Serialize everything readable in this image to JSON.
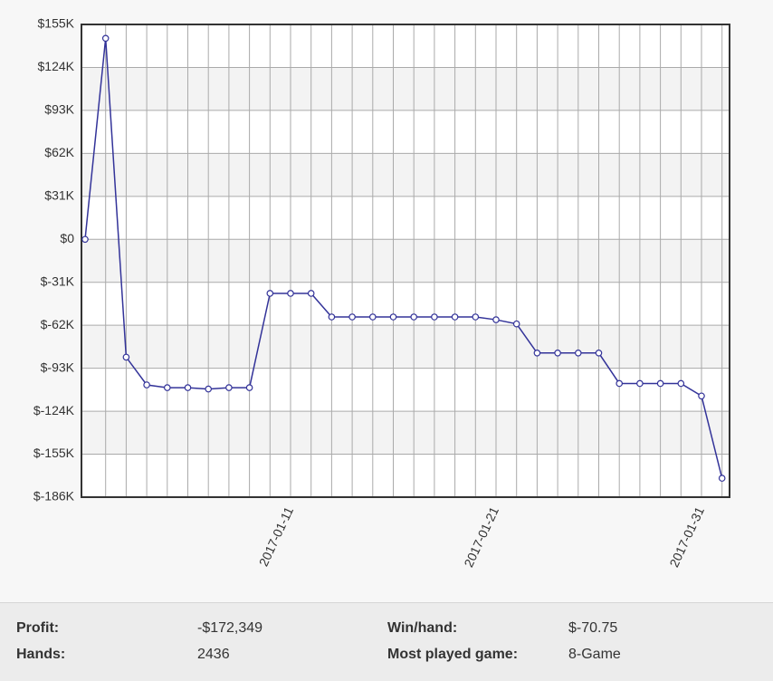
{
  "chart_data": {
    "type": "line",
    "categories": [
      null,
      null,
      null,
      null,
      null,
      null,
      null,
      null,
      null,
      null,
      "2017-01-11",
      null,
      null,
      null,
      null,
      null,
      null,
      null,
      null,
      null,
      "2017-01-21",
      null,
      null,
      null,
      null,
      null,
      null,
      null,
      null,
      null,
      "2017-01-31",
      null
    ],
    "series": [
      {
        "name": "Profit",
        "color": "#333399",
        "values": [
          0,
          145000,
          -85000,
          -105000,
          -107000,
          -107000,
          -108000,
          -107000,
          -107000,
          -39000,
          -39000,
          -39000,
          -56000,
          -56000,
          -56000,
          -56000,
          -56000,
          -56000,
          -56000,
          -56000,
          -58000,
          -61000,
          -82000,
          -82000,
          -82000,
          -82000,
          -104000,
          -104000,
          -104000,
          -104000,
          -113000,
          -172349
        ]
      }
    ],
    "ylim": [
      -186000,
      155000
    ],
    "yticks": [
      {
        "value": 155000,
        "label": "$155K"
      },
      {
        "value": 124000,
        "label": "$124K"
      },
      {
        "value": 93000,
        "label": "$93K"
      },
      {
        "value": 62000,
        "label": "$62K"
      },
      {
        "value": 31000,
        "label": "$31K"
      },
      {
        "value": 0,
        "label": "$0"
      },
      {
        "value": -31000,
        "label": "$-31K"
      },
      {
        "value": -62000,
        "label": "$-62K"
      },
      {
        "value": -93000,
        "label": "$-93K"
      },
      {
        "value": -124000,
        "label": "$-124K"
      },
      {
        "value": -155000,
        "label": "$-155K"
      },
      {
        "value": -186000,
        "label": "$-186K"
      }
    ],
    "grid": true
  },
  "stats": {
    "rows": [
      [
        "Profit:",
        "-$172,349",
        "Win/hand:",
        "$-70.75"
      ],
      [
        "Hands:",
        "2436",
        "Most played game:",
        "8-Game"
      ]
    ]
  }
}
